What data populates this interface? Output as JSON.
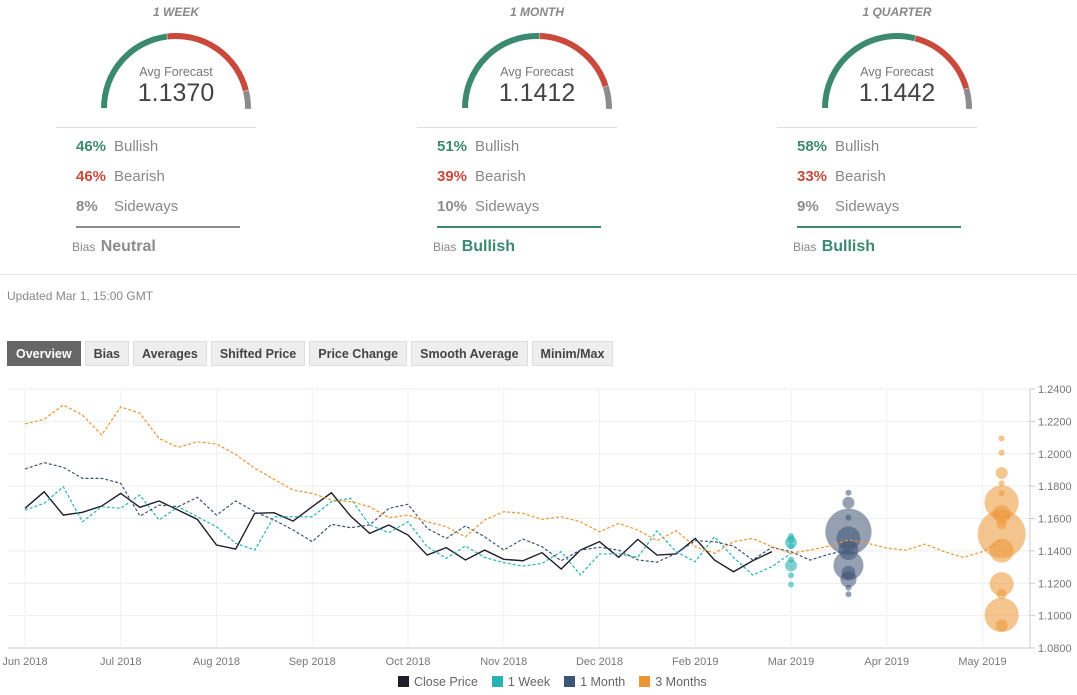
{
  "colors": {
    "bullish": "#3b8a6f",
    "bearish": "#c94a3c",
    "sideways": "#8c8c8c",
    "close": "#1f1f2a",
    "week": "#27b3b3",
    "month": "#3e5474",
    "quarter": "#ec9535"
  },
  "panels": [
    {
      "title": "1 WEEK",
      "avg_label": "Avg Forecast",
      "avg_value": "1.1370",
      "bullish_pct": "46%",
      "bullish": 46,
      "bullish_label": "Bullish",
      "bearish_pct": "46%",
      "bearish": 46,
      "bearish_label": "Bearish",
      "sideways_pct": "8%",
      "sideways": 8,
      "sideways_label": "Sideways",
      "bias_label": "Bias",
      "bias": "Neutral",
      "bias_color": "#8c8c8c"
    },
    {
      "title": "1 MONTH",
      "avg_label": "Avg Forecast",
      "avg_value": "1.1412",
      "bullish_pct": "51%",
      "bullish": 51,
      "bullish_label": "Bullish",
      "bearish_pct": "39%",
      "bearish": 39,
      "bearish_label": "Bearish",
      "sideways_pct": "10%",
      "sideways": 10,
      "sideways_label": "Sideways",
      "bias_label": "Bias",
      "bias": "Bullish",
      "bias_color": "#3b8a6f"
    },
    {
      "title": "1 QUARTER",
      "avg_label": "Avg Forecast",
      "avg_value": "1.1442",
      "bullish_pct": "58%",
      "bullish": 58,
      "bullish_label": "Bullish",
      "bearish_pct": "33%",
      "bearish": 33,
      "bearish_label": "Bearish",
      "sideways_pct": "9%",
      "sideways": 9,
      "sideways_label": "Sideways",
      "bias_label": "Bias",
      "bias": "Bullish",
      "bias_color": "#3b8a6f"
    }
  ],
  "updated": "Updated Mar 1, 15:00 GMT",
  "tabs": [
    {
      "label": "Overview",
      "active": true
    },
    {
      "label": "Bias"
    },
    {
      "label": "Averages"
    },
    {
      "label": "Shifted Price"
    },
    {
      "label": "Price Change"
    },
    {
      "label": "Smooth Average"
    },
    {
      "label": "Minim/Max"
    }
  ],
  "chart_data": {
    "type": "line",
    "x_type": "date-weekly",
    "x_start": "2018-06-01",
    "x_ticks": [
      {
        "week": 0,
        "label": "Jun 2018"
      },
      {
        "week": 5,
        "label": "Jul 2018"
      },
      {
        "week": 10,
        "label": "Aug 2018"
      },
      {
        "week": 15,
        "label": "Sep 2018"
      },
      {
        "week": 20,
        "label": "Oct 2018"
      },
      {
        "week": 25,
        "label": "Nov 2018"
      },
      {
        "week": 30,
        "label": "Dec 2018"
      },
      {
        "week": 35,
        "label": "Feb 2019"
      },
      {
        "week": 40,
        "label": "Mar 2019"
      },
      {
        "week": 45,
        "label": "Apr 2019"
      },
      {
        "week": 50,
        "label": "May 2019"
      }
    ],
    "ylim": [
      1.08,
      1.24
    ],
    "y_ticks": [
      "1.0800",
      "1.1000",
      "1.1200",
      "1.1400",
      "1.1600",
      "1.1800",
      "1.2000",
      "1.2200",
      "1.2400"
    ],
    "grid": true,
    "legend": "bottom",
    "series": [
      {
        "name": "Close Price",
        "style": "solid",
        "values": [
          1.1663,
          1.1765,
          1.1621,
          1.1638,
          1.1677,
          1.1755,
          1.1669,
          1.1708,
          1.1652,
          1.1595,
          1.1436,
          1.1411,
          1.1632,
          1.1636,
          1.1584,
          1.1673,
          1.1759,
          1.1615,
          1.1508,
          1.156,
          1.1498,
          1.1374,
          1.142,
          1.1344,
          1.1405,
          1.1348,
          1.1339,
          1.1389,
          1.1288,
          1.1405,
          1.1457,
          1.136,
          1.1471,
          1.1374,
          1.1381,
          1.1477,
          1.1344,
          1.1271,
          1.1339,
          1.1395
        ]
      },
      {
        "name": "1 Week",
        "style": "dashed",
        "values": [
          1.1652,
          1.1694,
          1.1796,
          1.158,
          1.1673,
          1.1663,
          1.1745,
          1.1591,
          1.1673,
          1.1611,
          1.1549,
          1.1447,
          1.1405,
          1.1611,
          1.1611,
          1.1611,
          1.1704,
          1.1725,
          1.156,
          1.1512,
          1.158,
          1.1426,
          1.1354,
          1.143,
          1.136,
          1.1327,
          1.1306,
          1.1323,
          1.1395,
          1.1251,
          1.1381,
          1.1381,
          1.136,
          1.1523,
          1.1395,
          1.1333,
          1.1487,
          1.136,
          1.1251,
          1.1302,
          1.1385
        ]
      },
      {
        "name": "1 Month",
        "style": "dashed",
        "values": [
          1.1906,
          1.1945,
          1.1916,
          1.1848,
          1.1848,
          1.1817,
          1.1615,
          1.1683,
          1.1673,
          1.1731,
          1.1621,
          1.1708,
          1.1642,
          1.1591,
          1.1529,
          1.1457,
          1.1564,
          1.1543,
          1.156,
          1.1663,
          1.1688,
          1.1539,
          1.1477,
          1.1554,
          1.1487,
          1.1405,
          1.1473,
          1.1426,
          1.1339,
          1.1405,
          1.1422,
          1.1405,
          1.1344,
          1.133,
          1.1385,
          1.1463,
          1.1457,
          1.143,
          1.1344,
          1.1422,
          1.1395,
          1.1343,
          1.138,
          1.1405
        ]
      },
      {
        "name": "3 Months",
        "style": "dashed",
        "values": [
          1.2184,
          1.2213,
          1.2301,
          1.2239,
          1.2116,
          1.229,
          1.225,
          1.2095,
          1.204,
          1.2074,
          1.206,
          1.1996,
          1.191,
          1.1842,
          1.1776,
          1.1755,
          1.1714,
          1.1704,
          1.1673,
          1.1605,
          1.1621,
          1.158,
          1.1549,
          1.1487,
          1.1591,
          1.1642,
          1.1632,
          1.1595,
          1.1611,
          1.158,
          1.1518,
          1.157,
          1.1529,
          1.1463,
          1.1525,
          1.1426,
          1.1385,
          1.1457,
          1.1477,
          1.1426,
          1.1385,
          1.1405,
          1.143,
          1.1467,
          1.1447,
          1.1417,
          1.1405,
          1.1442,
          1.1395,
          1.136,
          1.1395,
          1.1467
        ]
      }
    ],
    "forecast_bubbles": [
      {
        "series": "1 Week",
        "week": 40,
        "points": [
          [
            1.1492,
            1
          ],
          [
            1.1472,
            1.3
          ],
          [
            1.1451,
            2
          ],
          [
            1.1428,
            1
          ],
          [
            1.1346,
            1
          ],
          [
            1.131,
            2
          ],
          [
            1.1249,
            1
          ],
          [
            1.1192,
            1
          ]
        ]
      },
      {
        "series": "1 Month",
        "week": 43,
        "points": [
          [
            1.1759,
            1
          ],
          [
            1.1697,
            2
          ],
          [
            1.1606,
            1
          ],
          [
            1.1518,
            7.7
          ],
          [
            1.1477,
            4
          ],
          [
            1.1405,
            3.3
          ],
          [
            1.131,
            5
          ],
          [
            1.1265,
            2.3
          ],
          [
            1.1224,
            2.7
          ],
          [
            1.1173,
            1
          ],
          [
            1.1132,
            1
          ]
        ]
      },
      {
        "series": "3 Months",
        "week": 51,
        "points": [
          [
            1.2095,
            1
          ],
          [
            1.2006,
            1
          ],
          [
            1.1881,
            2
          ],
          [
            1.1818,
            1
          ],
          [
            1.1756,
            1
          ],
          [
            1.1699,
            5.7
          ],
          [
            1.1627,
            3
          ],
          [
            1.1565,
            1.7
          ],
          [
            1.1504,
            8
          ],
          [
            1.1401,
            4
          ],
          [
            1.1195,
            4
          ],
          [
            1.1133,
            1.7
          ],
          [
            1.1004,
            5.7
          ],
          [
            1.0939,
            2
          ]
        ]
      }
    ]
  }
}
